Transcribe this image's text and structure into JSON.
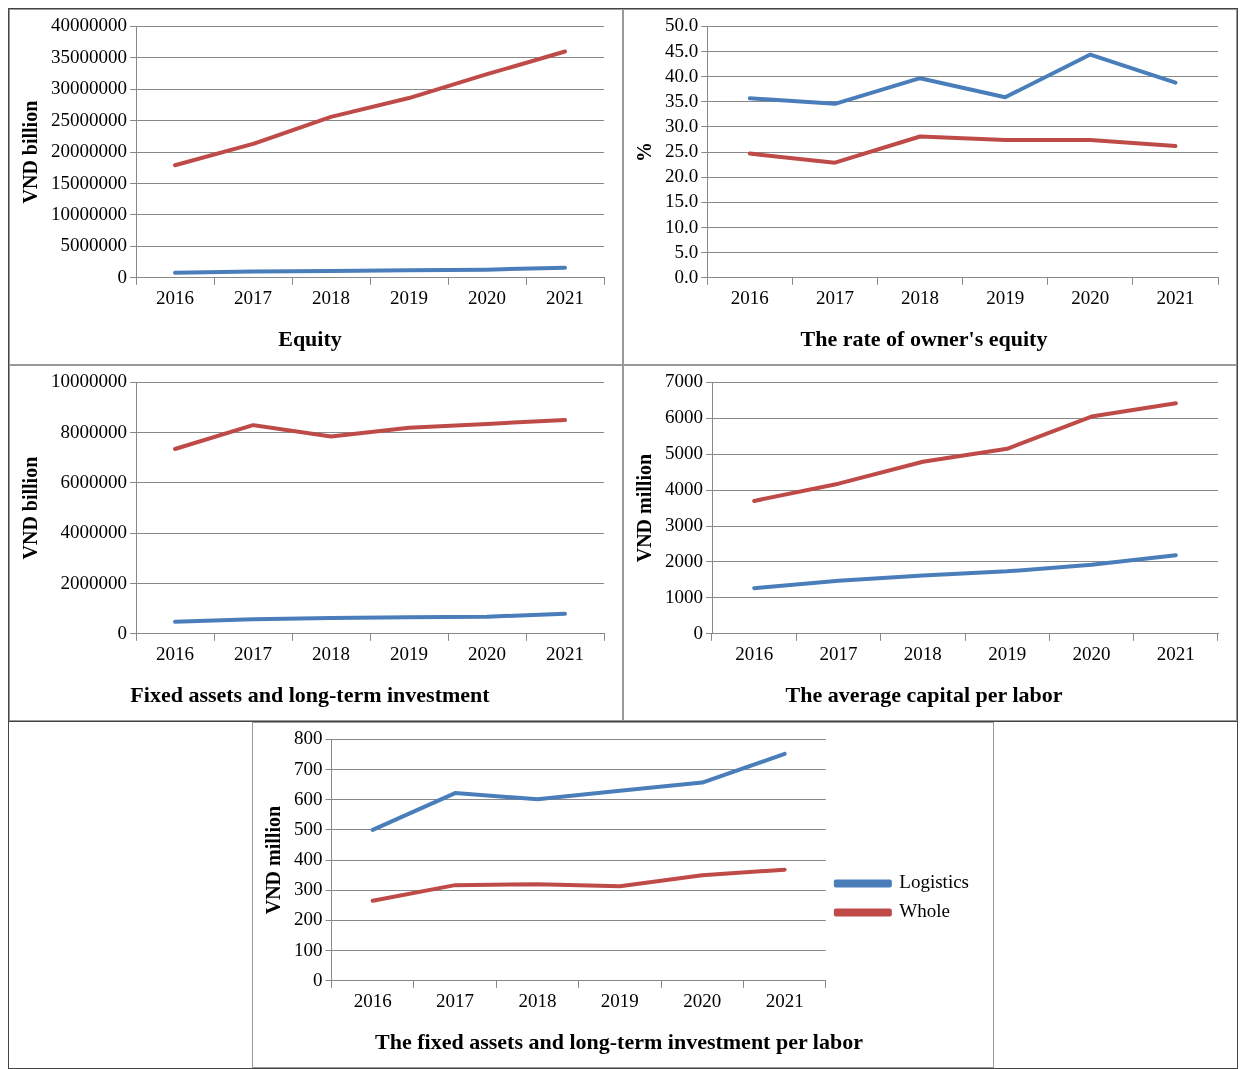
{
  "chart_data": [
    {
      "type": "line",
      "title": "Equity",
      "ylabel": "VND billion",
      "categories": [
        "2016",
        "2017",
        "2018",
        "2019",
        "2020",
        "2021"
      ],
      "ylim": [
        0,
        40000000
      ],
      "yticks": [
        0,
        5000000,
        10000000,
        15000000,
        20000000,
        25000000,
        30000000,
        35000000,
        40000000
      ],
      "grid": "y",
      "marker": "none",
      "legend": false,
      "series": [
        {
          "color": "#4a7ebb",
          "values": [
            800000,
            1000000,
            1100000,
            1200000,
            1300000,
            1600000
          ]
        },
        {
          "color": "#be4b48",
          "values": [
            17900000,
            21300000,
            25600000,
            28600000,
            32400000,
            36000000
          ]
        }
      ]
    },
    {
      "type": "line",
      "title": "The rate of owner's equity",
      "ylabel": "%",
      "categories": [
        "2016",
        "2017",
        "2018",
        "2019",
        "2020",
        "2021"
      ],
      "ylim": [
        0,
        50
      ],
      "yticks": [
        {
          "value": 0,
          "label": "0.0"
        },
        {
          "value": 5,
          "label": "5.0"
        },
        {
          "value": 10,
          "label": "10.0"
        },
        {
          "value": 15,
          "label": "15.0"
        },
        {
          "value": 20,
          "label": "20.0"
        },
        {
          "value": 25,
          "label": "25.0"
        },
        {
          "value": 30,
          "label": "30.0"
        },
        {
          "value": 35,
          "label": "35.0"
        },
        {
          "value": 40,
          "label": "40.0"
        },
        {
          "value": 45,
          "label": "45.0"
        },
        {
          "value": 50,
          "label": "50.0"
        }
      ],
      "grid": "y",
      "marker": "none",
      "legend": false,
      "series": [
        {
          "color": "#4a7ebb",
          "values": [
            35.7,
            34.6,
            39.7,
            35.9,
            44.4,
            38.8
          ]
        },
        {
          "color": "#be4b48",
          "values": [
            24.7,
            22.9,
            28.1,
            27.4,
            27.4,
            26.2
          ]
        }
      ]
    },
    {
      "type": "line",
      "title": "Fixed assets and long-term investment",
      "ylabel": "VND billion",
      "categories": [
        "2016",
        "2017",
        "2018",
        "2019",
        "2020",
        "2021"
      ],
      "ylim": [
        0,
        10000000
      ],
      "yticks": [
        0,
        2000000,
        4000000,
        6000000,
        8000000,
        10000000
      ],
      "grid": "y",
      "marker": "none",
      "legend": false,
      "series": [
        {
          "color": "#4a7ebb",
          "values": [
            480000,
            580000,
            630000,
            660000,
            680000,
            800000
          ]
        },
        {
          "color": "#be4b48",
          "values": [
            7350000,
            8300000,
            7850000,
            8200000,
            8350000,
            8500000
          ]
        }
      ]
    },
    {
      "type": "line",
      "title": "The average capital per labor",
      "ylabel": "VND million",
      "categories": [
        "2016",
        "2017",
        "2018",
        "2019",
        "2020",
        "2021"
      ],
      "ylim": [
        0,
        7000
      ],
      "yticks": [
        0,
        1000,
        2000,
        3000,
        4000,
        5000,
        6000,
        7000
      ],
      "grid": "y",
      "marker": "none",
      "legend": false,
      "series": [
        {
          "color": "#4a7ebb",
          "values": [
            1270,
            1480,
            1620,
            1740,
            1920,
            2190
          ]
        },
        {
          "color": "#be4b48",
          "values": [
            3700,
            4180,
            4790,
            5150,
            6050,
            6420
          ]
        }
      ]
    },
    {
      "type": "line",
      "title": "The fixed assets and long-term investment per labor",
      "ylabel": "VND million",
      "categories": [
        "2016",
        "2017",
        "2018",
        "2019",
        "2020",
        "2021"
      ],
      "ylim": [
        0,
        800
      ],
      "yticks": [
        0,
        100,
        200,
        300,
        400,
        500,
        600,
        700,
        800
      ],
      "grid": "y",
      "marker": "none",
      "legend": "right",
      "series": [
        {
          "name": "Logistics",
          "color": "#4a7ebb",
          "values": [
            500,
            622,
            602,
            630,
            657,
            752
          ]
        },
        {
          "name": "Whole",
          "color": "#be4b48",
          "values": [
            265,
            317,
            320,
            313,
            350,
            368
          ]
        }
      ]
    }
  ]
}
